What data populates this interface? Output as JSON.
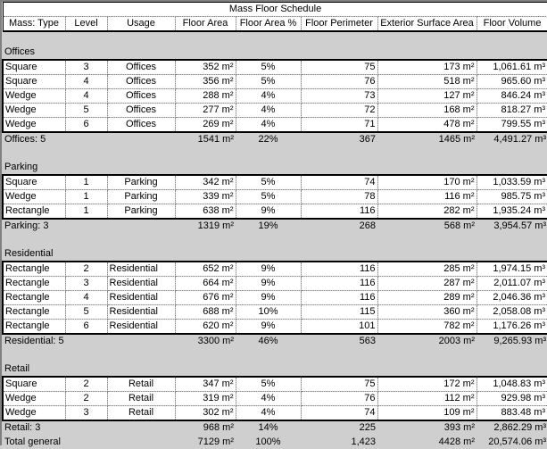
{
  "title": "Mass Floor Schedule",
  "columns": [
    "Mass: Type",
    "Level",
    "Usage",
    "Floor Area",
    "Floor Area %",
    "Floor Perimeter",
    "Exterior Surface Area",
    "Floor Volume"
  ],
  "groups": [
    {
      "label": "Offices",
      "rows": [
        [
          "Square",
          "3",
          "Offices",
          "352 m²",
          "5%",
          "75",
          "173 m²",
          "1,061.61 m³"
        ],
        [
          "Square",
          "4",
          "Offices",
          "356 m²",
          "5%",
          "76",
          "518 m²",
          "965.60 m³"
        ],
        [
          "Wedge",
          "4",
          "Offices",
          "288 m²",
          "4%",
          "73",
          "127 m²",
          "846.24 m³"
        ],
        [
          "Wedge",
          "5",
          "Offices",
          "277 m²",
          "4%",
          "72",
          "168 m²",
          "818.27 m³"
        ],
        [
          "Wedge",
          "6",
          "Offices",
          "269 m²",
          "4%",
          "71",
          "478 m²",
          "799.55 m³"
        ]
      ],
      "subtotal": [
        "Offices: 5",
        "",
        "",
        "1541 m²",
        "22%",
        "367",
        "1465 m²",
        "4,491.27 m³"
      ]
    },
    {
      "label": "Parking",
      "rows": [
        [
          "Square",
          "1",
          "Parking",
          "342 m²",
          "5%",
          "74",
          "170 m²",
          "1,033.59 m³"
        ],
        [
          "Wedge",
          "1",
          "Parking",
          "339 m²",
          "5%",
          "78",
          "116 m²",
          "985.75 m³"
        ],
        [
          "Rectangle",
          "1",
          "Parking",
          "638 m²",
          "9%",
          "116",
          "282 m²",
          "1,935.24 m³"
        ]
      ],
      "subtotal": [
        "Parking: 3",
        "",
        "",
        "1319 m²",
        "19%",
        "268",
        "568 m²",
        "3,954.57 m³"
      ]
    },
    {
      "label": "Residential",
      "rows": [
        [
          "Rectangle",
          "2",
          "Residential",
          "652 m²",
          "9%",
          "116",
          "285 m²",
          "1,974.15 m³"
        ],
        [
          "Rectangle",
          "3",
          "Residential",
          "664 m²",
          "9%",
          "116",
          "287 m²",
          "2,011.07 m³"
        ],
        [
          "Rectangle",
          "4",
          "Residential",
          "676 m²",
          "9%",
          "116",
          "289 m²",
          "2,046.36 m³"
        ],
        [
          "Rectangle",
          "5",
          "Residential",
          "688 m²",
          "10%",
          "115",
          "360 m²",
          "2,058.08 m³"
        ],
        [
          "Rectangle",
          "6",
          "Residential",
          "620 m²",
          "9%",
          "101",
          "782 m²",
          "1,176.26 m³"
        ]
      ],
      "subtotal": [
        "Residential: 5",
        "",
        "",
        "3300 m²",
        "46%",
        "563",
        "2003 m²",
        "9,265.93 m³"
      ]
    },
    {
      "label": "Retail",
      "rows": [
        [
          "Square",
          "2",
          "Retail",
          "347 m²",
          "5%",
          "75",
          "172 m²",
          "1,048.83 m³"
        ],
        [
          "Wedge",
          "2",
          "Retail",
          "319 m²",
          "4%",
          "76",
          "112 m²",
          "929.98 m³"
        ],
        [
          "Wedge",
          "3",
          "Retail",
          "302 m²",
          "4%",
          "74",
          "109 m²",
          "883.48 m³"
        ]
      ],
      "subtotal": [
        "Retail: 3",
        "",
        "",
        "968 m²",
        "14%",
        "225",
        "393 m²",
        "2,862.29 m³"
      ]
    }
  ],
  "total": [
    "Total general",
    "",
    "",
    "7129 m²",
    "100%",
    "1,423",
    "4428 m²",
    "20,574.06 m³"
  ]
}
